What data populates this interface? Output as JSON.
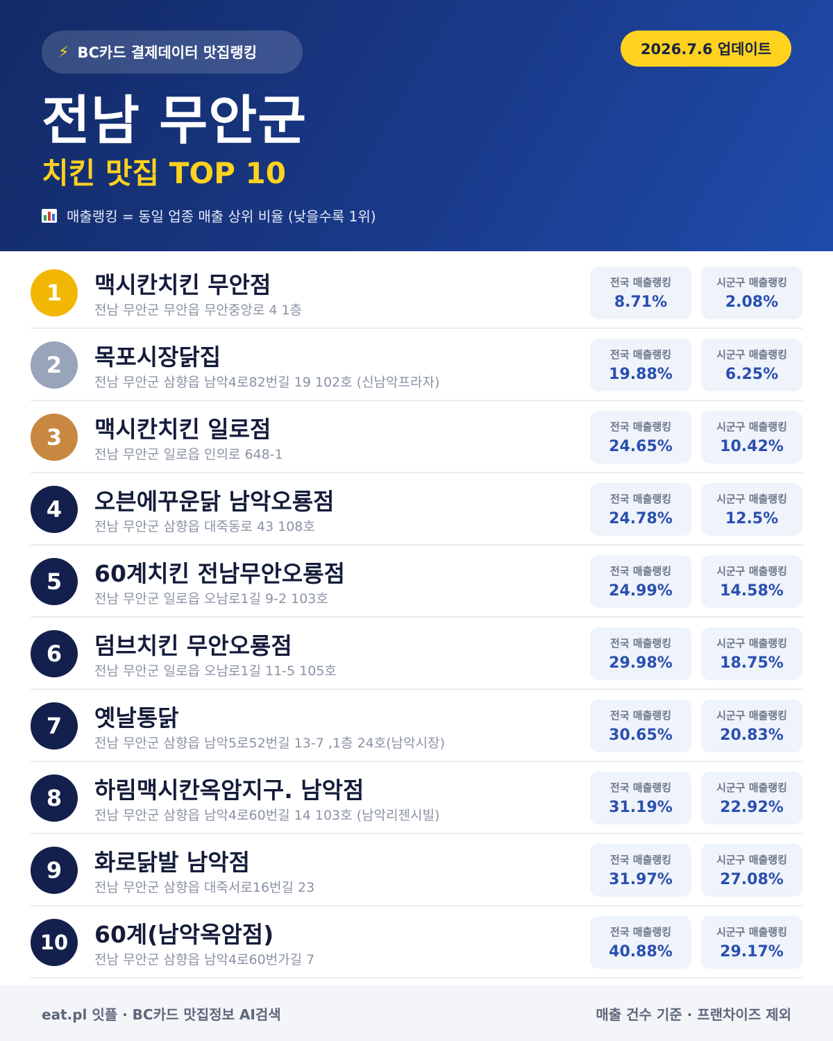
{
  "header": {
    "source_pill": "BC카드 결제데이터 맛집랭킹",
    "update": "2026.7.6 업데이트",
    "region": "전남 무안군",
    "category": "치킨 맛집 TOP 10",
    "legend": "매출랭킹 = 동일 업종 매출 상위 비율 (낮을수록 1위)",
    "accent_color": "#ffd21f",
    "background_color": "#1a3a8a"
  },
  "stat_labels": {
    "national": "전국 매출랭킹",
    "local": "시군구 매출랭킹"
  },
  "stores": [
    {
      "rank": "1",
      "name": "맥시칸치킨 무안점",
      "address": "전남 무안군 무안읍 무안중앙로 4 1층",
      "national": "8.71%",
      "local": "2.08%"
    },
    {
      "rank": "2",
      "name": "목포시장닭집",
      "address": "전남 무안군 삼향읍 남악4로82번길 19 102호 (신남악프라자)",
      "national": "19.88%",
      "local": "6.25%"
    },
    {
      "rank": "3",
      "name": "맥시칸치킨 일로점",
      "address": "전남 무안군 일로읍 인의로 648-1",
      "national": "24.65%",
      "local": "10.42%"
    },
    {
      "rank": "4",
      "name": "오븐에꾸운닭 남악오룡점",
      "address": "전남 무안군 삼향읍 대죽동로 43 108호",
      "national": "24.78%",
      "local": "12.5%"
    },
    {
      "rank": "5",
      "name": "60계치킨 전남무안오룡점",
      "address": "전남 무안군 일로읍 오남로1길 9-2 103호",
      "national": "24.99%",
      "local": "14.58%"
    },
    {
      "rank": "6",
      "name": "덤브치킨 무안오룡점",
      "address": "전남 무안군 일로읍 오남로1길 11-5 105호",
      "national": "29.98%",
      "local": "18.75%"
    },
    {
      "rank": "7",
      "name": "옛날통닭",
      "address": "전남 무안군 삼향읍 남악5로52번길 13-7 ,1층 24호(남악시장)",
      "national": "30.65%",
      "local": "20.83%"
    },
    {
      "rank": "8",
      "name": "하림맥시칸옥암지구. 남악점",
      "address": "전남 무안군 삼향읍 남악4로60번길 14 103호 (남악리젠시빌)",
      "national": "31.19%",
      "local": "22.92%"
    },
    {
      "rank": "9",
      "name": "화로닭발 남악점",
      "address": "전남 무안군 삼향읍 대죽서로16번길 23",
      "national": "31.97%",
      "local": "27.08%"
    },
    {
      "rank": "10",
      "name": "60계(남악옥암점)",
      "address": "전남 무안군 삼향읍 남악4로60번가길 7",
      "national": "40.88%",
      "local": "29.17%"
    }
  ],
  "footer": {
    "left": "eat.pl 잇플 · BC카드 맛집정보 AI검색",
    "right": "매출 건수 기준 · 프랜차이즈 제외"
  }
}
